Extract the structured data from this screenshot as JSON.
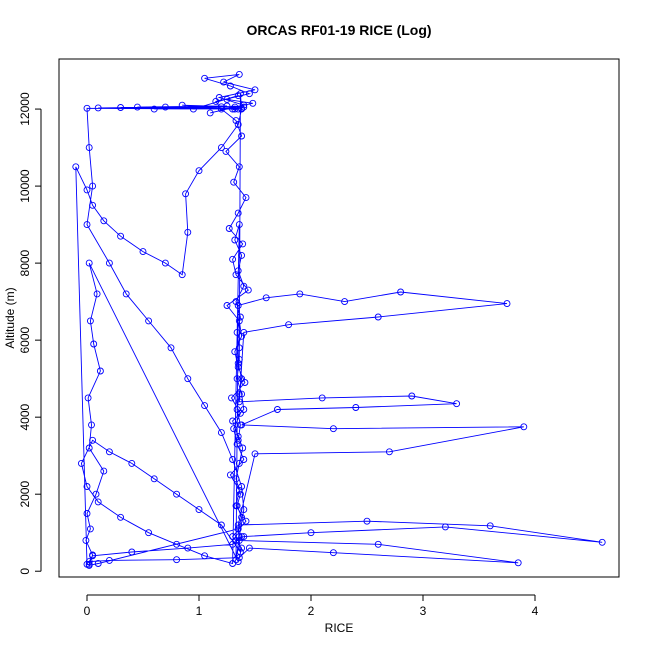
{
  "chart_data": {
    "type": "scatter",
    "title": "ORCAS RF01-19 RICE (Log)",
    "xlabel": "RICE",
    "ylabel": "Altitude (m)",
    "xlim": [
      -0.25,
      4.75
    ],
    "ylim": [
      -150,
      13300
    ],
    "xticks": [
      0,
      1,
      2,
      3,
      4
    ],
    "yticks": [
      0,
      2000,
      4000,
      6000,
      8000,
      10000,
      12000
    ],
    "grid": false,
    "legend": "none",
    "colors": {
      "series": "#0000ff",
      "axes": "#000000",
      "background": "#ffffff"
    },
    "series": [
      {
        "marker": "open-circle",
        "connected": true,
        "x": [
          0.02,
          0.05,
          -0.01,
          0.03,
          0.0,
          0.08,
          0.15,
          0.02,
          0.04,
          0.01,
          0.12,
          0.06,
          0.03,
          0.09,
          0.02,
          1.35,
          1.38,
          1.3,
          1.42,
          1.33,
          1.36,
          1.28,
          1.4,
          1.34,
          1.31,
          1.37,
          1.29,
          1.41,
          1.35,
          1.32,
          1.38,
          1.36,
          1.25,
          1.44,
          1.33,
          1.3,
          1.39,
          1.27,
          1.35,
          1.42,
          1.31,
          1.36,
          1.24,
          1.38,
          1.33,
          1.2,
          1.15,
          1.45,
          1.28,
          1.05,
          1.36,
          1.22,
          1.5,
          1.18,
          1.4,
          1.1,
          1.32,
          1.48,
          1.25,
          1.35,
          0.95,
          1.4,
          0.85,
          1.3,
          0.7,
          1.38,
          0.6,
          1.25,
          0.45,
          1.35,
          0.3,
          1.2,
          0.1,
          1.32,
          0.0,
          0.02,
          0.05,
          0.0,
          0.2,
          0.35,
          0.55,
          0.75,
          0.9,
          1.05,
          1.2,
          1.3,
          1.38,
          1.4,
          1.36,
          1.33,
          1.35,
          1.6,
          1.9,
          2.3,
          2.8,
          3.75,
          2.6,
          1.8,
          1.4,
          1.36,
          2.1,
          2.9,
          3.3,
          2.4,
          1.7,
          1.38,
          2.2,
          3.9,
          2.7,
          1.5,
          1.35,
          2.5,
          3.6,
          4.6,
          3.2,
          2.0,
          1.4,
          1.33,
          2.6,
          3.85,
          2.2,
          1.45,
          1.36,
          0.8,
          0.2,
          0.02,
          0.05,
          0.4,
          0.9,
          1.3,
          1.38,
          1.35,
          0.1,
          0.02,
          0.0,
          -0.1,
          0.0,
          0.05,
          0.15,
          0.3,
          0.5,
          0.7,
          0.85,
          0.9,
          0.88,
          1.0,
          1.2,
          1.35,
          1.38,
          1.37,
          1.36,
          1.34,
          1.38,
          1.4,
          1.3,
          1.35,
          1.39,
          1.36,
          1.33,
          1.37,
          1.34,
          1.38,
          1.35,
          1.36,
          1.37,
          1.2,
          1.0,
          0.8,
          0.6,
          0.4,
          0.2,
          0.05,
          -0.05,
          0.0,
          0.1,
          0.3,
          0.55,
          0.8,
          1.05,
          1.3,
          1.36,
          1.32,
          1.38,
          1.35,
          1.4,
          1.33,
          1.37,
          1.34,
          1.36,
          1.35,
          1.38,
          1.36,
          1.34,
          1.37,
          1.35
        ],
        "y": [
          180,
          420,
          800,
          1100,
          1500,
          2000,
          2600,
          3200,
          3800,
          4500,
          5200,
          5900,
          6500,
          7200,
          8000,
          250,
          600,
          900,
          1300,
          1700,
          2100,
          2500,
          2900,
          3300,
          3700,
          4100,
          4500,
          4900,
          5300,
          5700,
          6100,
          6500,
          6900,
          7300,
          7700,
          8100,
          8500,
          8900,
          9300,
          9700,
          10100,
          10500,
          10900,
          11300,
          11700,
          12000,
          12200,
          12400,
          12600,
          12800,
          12900,
          12700,
          12500,
          12300,
          12100,
          11900,
          12050,
          12150,
          12250,
          12350,
          12000,
          12050,
          12100,
          12000,
          12050,
          12020,
          12000,
          12080,
          12050,
          12000,
          12040,
          12060,
          12030,
          12000,
          12020,
          11000,
          10000,
          9000,
          8000,
          7200,
          6500,
          5800,
          5000,
          4300,
          3600,
          2900,
          2200,
          1600,
          900,
          300,
          6900,
          7100,
          7200,
          7000,
          7250,
          6950,
          6600,
          6400,
          6200,
          4400,
          4500,
          4550,
          4350,
          4250,
          4200,
          3800,
          3700,
          3750,
          3100,
          3050,
          1200,
          1300,
          1180,
          750,
          1150,
          1000,
          900,
          800,
          700,
          220,
          480,
          600,
          350,
          300,
          280,
          250,
          400,
          500,
          600,
          700,
          900,
          1100,
          200,
          150,
          180,
          10500,
          9900,
          9500,
          9100,
          8700,
          8300,
          8000,
          7700,
          8800,
          9800,
          10400,
          11000,
          11600,
          12000,
          12400,
          5500,
          5000,
          4600,
          4200,
          3900,
          3500,
          3200,
          2800,
          2400,
          2000,
          1700,
          1400,
          1100,
          800,
          500,
          1200,
          1600,
          2000,
          2400,
          2800,
          3100,
          3400,
          2800,
          2200,
          1800,
          1400,
          1000,
          700,
          400,
          200,
          9000,
          8600,
          8200,
          7800,
          7400,
          7000,
          6600,
          6200,
          5800,
          5400,
          5000,
          4600,
          4200,
          3800,
          3400
        ]
      }
    ]
  }
}
